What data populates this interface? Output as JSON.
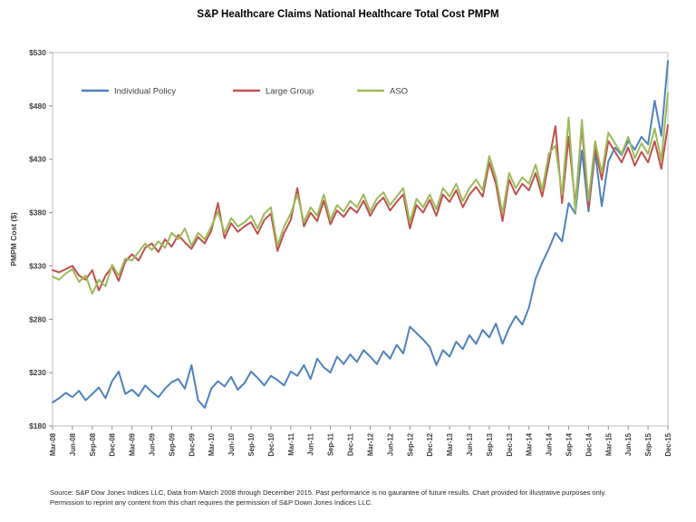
{
  "title": "S&P Healthcare Claims National Healthcare Total Cost PMPM",
  "footer": {
    "line1": "Source: S&P Dow Jones Indices LLC, Data from March 2008 through December 2015. Past performance is no gaurantee of future results. Chart provided for illustrative purposes only.",
    "line2": "Permission to reprint  any content from this chart requires the permission of S&P Down Jones Indices LLC."
  },
  "chart_data": {
    "type": "line",
    "title": "S&P Healthcare Claims National Healthcare Total Cost PMPM",
    "xlabel": "",
    "ylabel": "PMPM Cost ($)",
    "ylim": [
      180,
      530
    ],
    "ytick_step": 50,
    "ytick_prefix": "$",
    "grid": false,
    "legend_position": "top-left-inside",
    "points_per_tick": 3,
    "x_tick_labels": [
      "Mar-08",
      "Jun-08",
      "Sep-08",
      "Dec-08",
      "Mar-09",
      "Jun-09",
      "Sep-09",
      "Dec-09",
      "Mar-10",
      "Jun-10",
      "Sep-10",
      "Dec-10",
      "Mar-11",
      "Jun-11",
      "Sep-11",
      "Dec-11",
      "Mar-12",
      "Jun-12",
      "Sep-12",
      "Dec-12",
      "Mar-13",
      "Jun-13",
      "Sep-13",
      "Dec-13",
      "Mar-14",
      "Jun-14",
      "Sep-14",
      "Dec-14",
      "Mar-15",
      "Jun-15",
      "Sep-15",
      "Dec-15"
    ],
    "series": [
      {
        "name": "Individual Policy",
        "color": "#4F81BD",
        "values": [
          202,
          206,
          211,
          207,
          213,
          204,
          210,
          216,
          206,
          222,
          231,
          210,
          214,
          208,
          218,
          212,
          207,
          215,
          221,
          224,
          215,
          237,
          204,
          197,
          215,
          222,
          217,
          226,
          214,
          220,
          231,
          225,
          218,
          227,
          223,
          218,
          231,
          227,
          237,
          224,
          243,
          235,
          230,
          245,
          238,
          247,
          240,
          251,
          245,
          238,
          250,
          243,
          256,
          248,
          273,
          267,
          261,
          254,
          237,
          251,
          245,
          259,
          252,
          265,
          257,
          270,
          263,
          276,
          257,
          272,
          283,
          275,
          291,
          318,
          333,
          346,
          361,
          353,
          389,
          379,
          438,
          381,
          437,
          386,
          428,
          441,
          434,
          447,
          439,
          451,
          444,
          485,
          452,
          522
        ]
      },
      {
        "name": "Large Group",
        "color": "#C0504D",
        "values": [
          326,
          324,
          327,
          330,
          321,
          317,
          326,
          307,
          321,
          329,
          316,
          334,
          341,
          335,
          347,
          351,
          343,
          355,
          348,
          359,
          352,
          346,
          357,
          351,
          363,
          389,
          356,
          370,
          362,
          367,
          371,
          360,
          373,
          379,
          344,
          361,
          373,
          403,
          367,
          380,
          372,
          391,
          369,
          382,
          376,
          385,
          380,
          391,
          377,
          388,
          394,
          382,
          390,
          397,
          365,
          387,
          380,
          392,
          377,
          397,
          390,
          401,
          385,
          397,
          404,
          395,
          427,
          407,
          372,
          411,
          397,
          407,
          401,
          417,
          395,
          427,
          461,
          389,
          451,
          387,
          461,
          385,
          441,
          411,
          447,
          437,
          427,
          441,
          424,
          437,
          427,
          447,
          421,
          462
        ]
      },
      {
        "name": "ASO",
        "color": "#9BBB59",
        "values": [
          320,
          317,
          323,
          327,
          315,
          321,
          304,
          317,
          311,
          331,
          321,
          337,
          335,
          343,
          351,
          345,
          353,
          347,
          361,
          355,
          365,
          349,
          361,
          355,
          367,
          381,
          361,
          375,
          367,
          371,
          377,
          365,
          379,
          385,
          349,
          367,
          379,
          397,
          371,
          385,
          377,
          397,
          373,
          387,
          381,
          391,
          385,
          397,
          381,
          393,
          399,
          387,
          395,
          403,
          371,
          393,
          385,
          397,
          383,
          403,
          395,
          407,
          391,
          403,
          411,
          401,
          433,
          413,
          379,
          417,
          403,
          413,
          407,
          425,
          401,
          435,
          443,
          397,
          469,
          381,
          467,
          391,
          447,
          417,
          455,
          445,
          435,
          451,
          431,
          445,
          435,
          459,
          429,
          492
        ]
      }
    ]
  }
}
